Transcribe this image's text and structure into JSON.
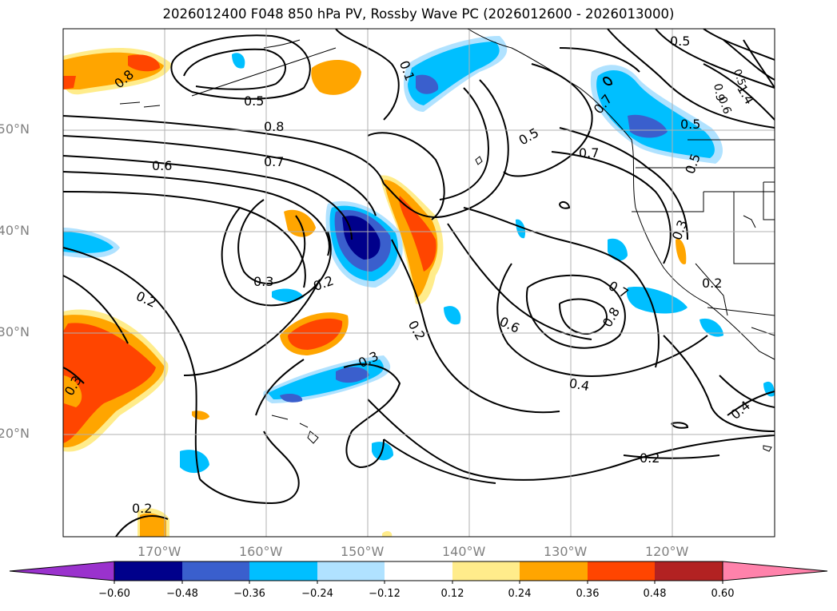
{
  "title": "2026012400 F048 850 hPa PV, Rossby Wave PC (2026012600 - 2026013000)",
  "axes": {
    "lon_labels": [
      "170°W",
      "160°W",
      "150°W",
      "140°W",
      "130°W",
      "120°W"
    ],
    "lat_labels": [
      "50°N",
      "40°N",
      "30°N",
      "20°N"
    ]
  },
  "contour_labels": [
    "0.8",
    "0.5",
    "0.8",
    "0.6",
    "0.7",
    "0.3",
    "0.2",
    "0.2",
    "0.3",
    "0.3",
    "0.2",
    "0.5",
    "0.5",
    "0.7",
    "0.7",
    "0.5",
    "0.5",
    "0.6",
    "0.8",
    "0.7",
    "0.4",
    "0.2",
    "0.2",
    "0.3",
    "0.4",
    "0.5",
    "1.4",
    "0.9",
    "0.6",
    "0.1"
  ],
  "colorbar": {
    "ticks": [
      "−0.60",
      "−0.48",
      "−0.36",
      "−0.24",
      "−0.12",
      "0.12",
      "0.24",
      "0.36",
      "0.48",
      "0.60"
    ],
    "colors": [
      "#9a32cd",
      "#00008b",
      "#3a5fcd",
      "#00bfff",
      "#b0e2ff",
      "#ffffff",
      "#ffec8b",
      "#ffa500",
      "#ff4500",
      "#b22222",
      "#ff82ab"
    ]
  }
}
